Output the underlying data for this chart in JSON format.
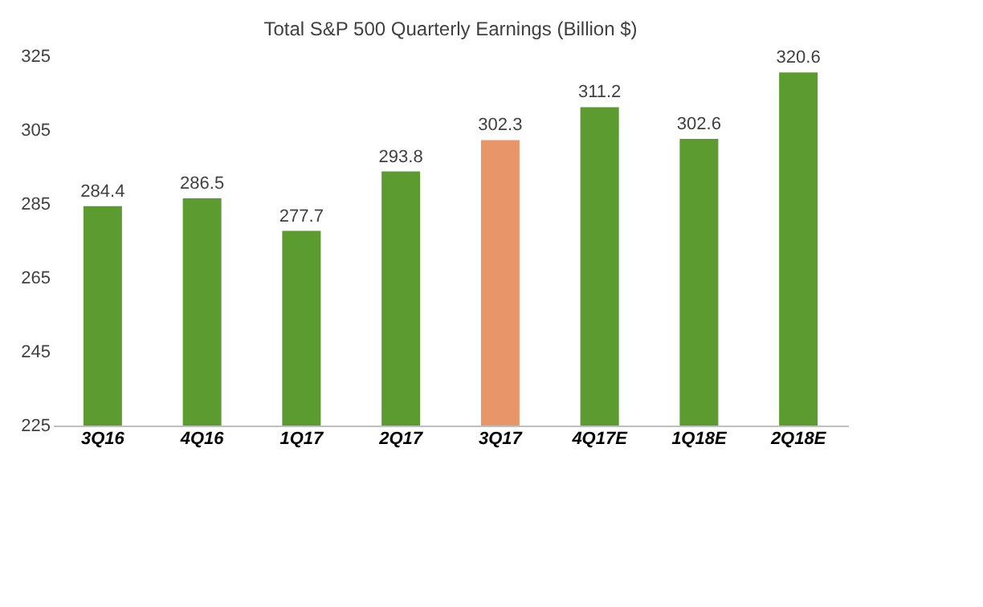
{
  "chart_data": {
    "type": "bar",
    "title": "Total S&P 500 Quarterly Earnings (Billion $)",
    "categories": [
      "3Q16",
      "4Q16",
      "1Q17",
      "2Q17",
      "3Q17",
      "4Q17E",
      "1Q18E",
      "2Q18E"
    ],
    "values": [
      284.4,
      286.5,
      277.7,
      293.8,
      302.3,
      311.2,
      302.6,
      320.6
    ],
    "colors": [
      "#5b9b2f",
      "#5b9b2f",
      "#5b9b2f",
      "#5b9b2f",
      "#e8956a",
      "#5b9b2f",
      "#5b9b2f",
      "#5b9b2f"
    ],
    "ylim": [
      225,
      325
    ],
    "yticks": [
      225,
      245,
      265,
      285,
      305,
      325
    ],
    "grid": false,
    "data_labels": true
  }
}
